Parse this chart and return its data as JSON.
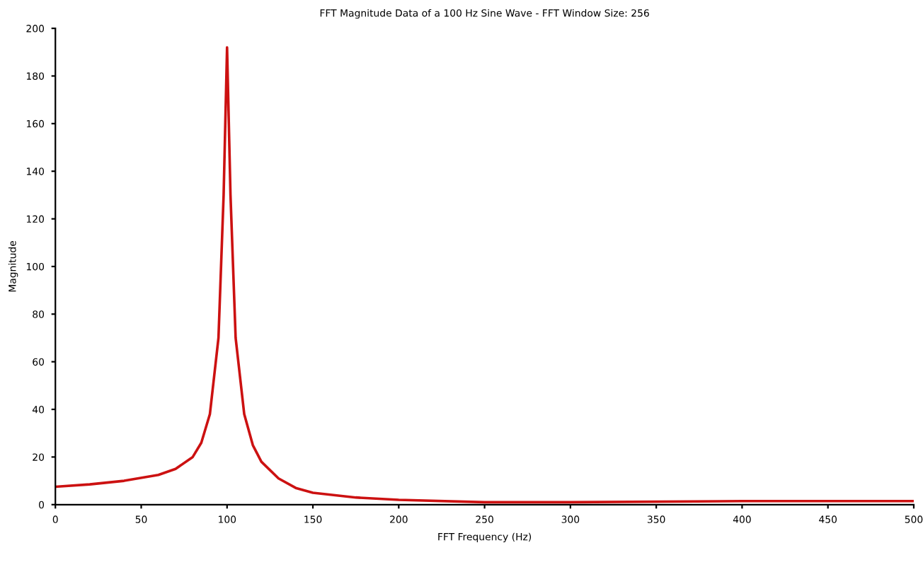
{
  "chart_data": {
    "type": "line",
    "title": "FFT Magnitude Data of a 100 Hz Sine Wave - FFT Window Size: 256",
    "xlabel": "FFT Frequency (Hz)",
    "ylabel": "Magnitude",
    "x": [
      0,
      20,
      40,
      60,
      70,
      80,
      85,
      90,
      95,
      98,
      100,
      102,
      105,
      110,
      115,
      120,
      130,
      140,
      150,
      175,
      200,
      250,
      300,
      400,
      500
    ],
    "series": [
      {
        "color": "#cc1111",
        "values": [
          7.5,
          8.5,
          10,
          12.5,
          15,
          20,
          26,
          38,
          70,
          130,
          192,
          130,
          70,
          38,
          25,
          18,
          11,
          7,
          5,
          3,
          2,
          1,
          1,
          1.5,
          1.5
        ]
      }
    ],
    "xlim": [
      0,
      500
    ],
    "xticks": [
      0,
      50,
      100,
      150,
      200,
      250,
      300,
      350,
      400,
      450,
      500
    ],
    "ylim": [
      0,
      200
    ],
    "yticks": [
      0,
      20,
      40,
      60,
      80,
      100,
      120,
      140,
      160,
      180,
      200
    ],
    "grid": false,
    "legend": false,
    "marker": "none",
    "line_style": "solid"
  }
}
